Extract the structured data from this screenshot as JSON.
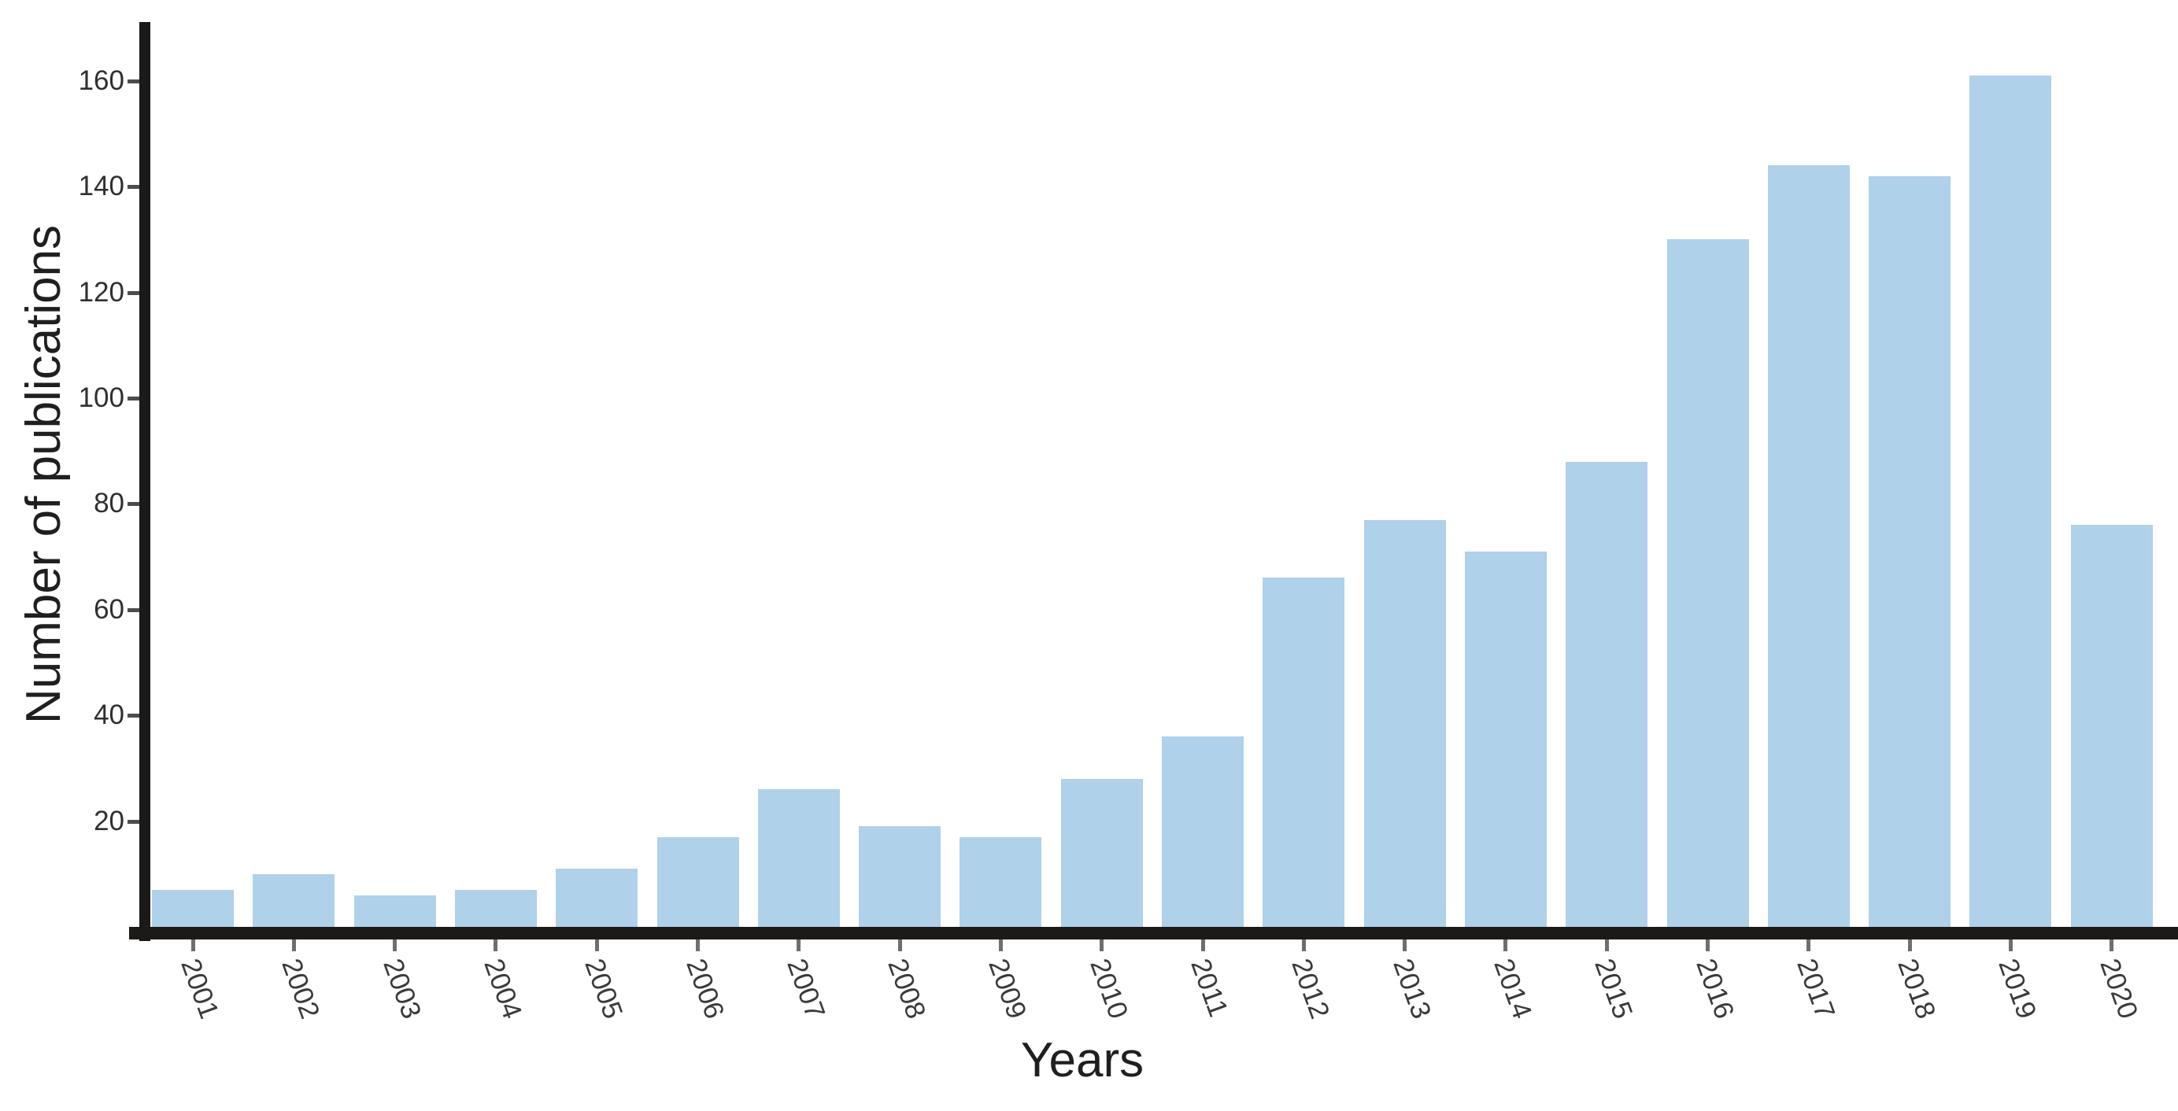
{
  "chart_data": {
    "type": "bar",
    "title": "",
    "xlabel": "Years",
    "ylabel": "Number of publications",
    "categories": [
      "2001",
      "2002",
      "2003",
      "2004",
      "2005",
      "2006",
      "2007",
      "2008",
      "2009",
      "2010",
      "2011",
      "2012",
      "2013",
      "2014",
      "2015",
      "2016",
      "2017",
      "2018",
      "2019",
      "2020"
    ],
    "values": [
      7,
      10,
      6,
      7,
      11,
      17,
      26,
      19,
      17,
      28,
      36,
      66,
      77,
      71,
      88,
      130,
      144,
      142,
      161,
      76
    ],
    "yticks": [
      20,
      40,
      60,
      80,
      100,
      120,
      140,
      160
    ],
    "ylim": [
      0,
      171
    ],
    "grid": false,
    "legend_position": "none",
    "x_tick_rotation_deg": 70,
    "bar_color": "#afd1ea",
    "axis_color": "#1c1a18",
    "y_tick_mark_color": "#4d4d4d",
    "x_tick_mark_color": "#6e6e6e",
    "tick_label_color": "#2f2f2f",
    "axis_title_color": "#1f1f1f",
    "background_color": "#ffffff"
  }
}
